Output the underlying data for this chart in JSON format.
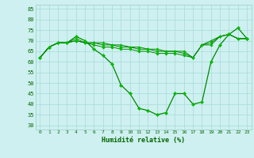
{
  "xlabel": "Humidité relative (%)",
  "background_color": "#cff0f0",
  "grid_color": "#aadddd",
  "line_color": "#008800",
  "marker_color": "#00bb00",
  "ylim": [
    28,
    87
  ],
  "xlim": [
    -0.5,
    23.5
  ],
  "yticks": [
    30,
    35,
    40,
    45,
    50,
    55,
    60,
    65,
    70,
    75,
    80,
    85
  ],
  "xticks": [
    0,
    1,
    2,
    3,
    4,
    5,
    6,
    7,
    8,
    9,
    10,
    11,
    12,
    13,
    14,
    15,
    16,
    17,
    18,
    19,
    20,
    21,
    22,
    23
  ],
  "series": [
    [
      62,
      67,
      69,
      69,
      72,
      70,
      66,
      63,
      59,
      49,
      45,
      38,
      37,
      35,
      36,
      45,
      45,
      40,
      41,
      60,
      68,
      73,
      76,
      71
    ],
    [
      62,
      67,
      69,
      69,
      71,
      69,
      68,
      67,
      67,
      66,
      66,
      65,
      65,
      64,
      64,
      64,
      63,
      62,
      68,
      70,
      72,
      73,
      71,
      71
    ],
    [
      62,
      67,
      69,
      69,
      70,
      69,
      69,
      68,
      68,
      67,
      67,
      66,
      66,
      65,
      65,
      65,
      64,
      62,
      68,
      69,
      72,
      73,
      71,
      71
    ],
    [
      62,
      67,
      69,
      69,
      70,
      69,
      69,
      69,
      68,
      68,
      67,
      67,
      66,
      66,
      65,
      65,
      65,
      62,
      68,
      68,
      72,
      73,
      71,
      71
    ]
  ]
}
